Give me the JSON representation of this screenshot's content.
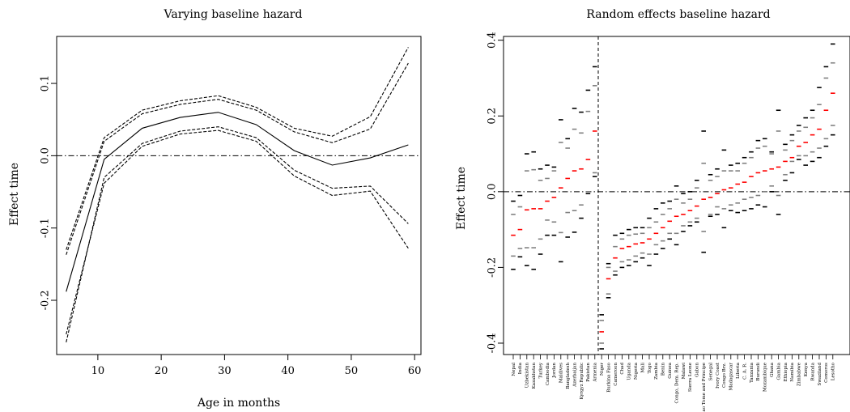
{
  "chart_data": [
    {
      "type": "line",
      "title": "Varying baseline hazard",
      "xlabel": "Age in months",
      "ylabel": "Effect time",
      "xlim": [
        3.5,
        61
      ],
      "ylim": [
        -0.275,
        0.165
      ],
      "xticks": [
        10,
        20,
        30,
        40,
        50,
        60
      ],
      "yticks": [
        -0.2,
        -0.1,
        0.0,
        0.1
      ],
      "reference_line_y": 0.0,
      "x": [
        5,
        11,
        17,
        23,
        29,
        35,
        41,
        47,
        53,
        59
      ],
      "series": [
        {
          "style": "solid",
          "values": [
            -0.188,
            -0.005,
            0.038,
            0.053,
            0.06,
            0.043,
            0.007,
            -0.013,
            -0.003,
            0.015
          ]
        },
        {
          "style": "dashed",
          "values": [
            -0.13,
            0.025,
            0.063,
            0.076,
            0.083,
            0.067,
            0.038,
            0.027,
            0.054,
            0.15
          ]
        },
        {
          "style": "dashed",
          "values": [
            -0.137,
            0.02,
            0.058,
            0.071,
            0.078,
            0.063,
            0.033,
            0.018,
            0.037,
            0.128
          ]
        },
        {
          "style": "dashed",
          "values": [
            -0.247,
            -0.038,
            0.013,
            0.03,
            0.035,
            0.02,
            -0.028,
            -0.055,
            -0.049,
            -0.128
          ]
        },
        {
          "style": "dashed",
          "values": [
            -0.258,
            -0.03,
            0.017,
            0.034,
            0.04,
            0.025,
            -0.02,
            -0.045,
            -0.042,
            -0.094
          ]
        }
      ]
    },
    {
      "type": "scatter",
      "title": "Random effects baseline hazard",
      "xlabel": "",
      "ylabel": "Effect time",
      "ylim": [
        -0.43,
        0.41
      ],
      "yticks": [
        -0.4,
        -0.2,
        0.0,
        0.2,
        0.4
      ],
      "reference_line_y": 0.0,
      "vertical_dashed_after_category": "Niger",
      "colors": {
        "outer": "#000000",
        "inner": "#808080",
        "median": "#ff0000"
      },
      "categories": [
        "Nepal",
        "India",
        "Uzbekistan",
        "Kazakhstan",
        "Turkey",
        "Cambodia",
        "Jordan",
        "Maldives",
        "Bangladesh",
        "Azerbaijan",
        "Kyrgyz Republic",
        "Pakistan",
        "Armenia",
        "Niger",
        "Burkina Faso",
        "Cameroon",
        "Chad",
        "Uganda",
        "Nigeria",
        "Mali",
        "Togo",
        "Zambia",
        "Benin",
        "Guinea",
        "Congo, Dem. Rep.",
        "Malawi",
        "Sierra Leone",
        "Gabon",
        "Sao Tome and Principe",
        "Senegal",
        "Ivory Coast",
        "Congo Brz.",
        "Madagascar",
        "Liberia",
        "C. A. R.",
        "Tanzania",
        "Burundi",
        "Mozambique",
        "Ghana",
        "Gambia",
        "Ethiopia",
        "Namibia",
        "Zimbabwe",
        "Kenya",
        "Rwanda",
        "Swaziland",
        "Comoros",
        "Lesotho"
      ],
      "values": [
        [
          -0.205,
          -0.17,
          -0.115,
          -0.06,
          -0.025
        ],
        [
          -0.172,
          -0.15,
          -0.1,
          -0.04,
          -0.01
        ],
        [
          -0.195,
          -0.148,
          -0.048,
          0.055,
          0.1
        ],
        [
          -0.205,
          -0.148,
          -0.045,
          0.058,
          0.105
        ],
        [
          -0.165,
          -0.125,
          -0.045,
          0.03,
          0.06
        ],
        [
          -0.115,
          -0.075,
          -0.025,
          0.035,
          0.07
        ],
        [
          -0.115,
          -0.08,
          -0.015,
          0.055,
          0.065
        ],
        [
          -0.185,
          -0.108,
          0.01,
          0.13,
          0.19
        ],
        [
          -0.12,
          -0.055,
          0.035,
          0.115,
          0.14
        ],
        [
          -0.107,
          -0.05,
          0.055,
          0.165,
          0.22
        ],
        [
          -0.07,
          -0.035,
          0.06,
          0.155,
          0.21
        ],
        [
          -0.005,
          0.0,
          0.085,
          0.212,
          0.268
        ],
        [
          0.04,
          0.05,
          0.16,
          0.28,
          0.33
        ],
        [
          -0.415,
          -0.4,
          -0.37,
          -0.34,
          -0.325
        ],
        [
          -0.28,
          -0.27,
          -0.23,
          -0.2,
          -0.19
        ],
        [
          -0.22,
          -0.21,
          -0.175,
          -0.145,
          -0.115
        ],
        [
          -0.2,
          -0.185,
          -0.15,
          -0.125,
          -0.11
        ],
        [
          -0.195,
          -0.18,
          -0.145,
          -0.115,
          -0.1
        ],
        [
          -0.185,
          -0.17,
          -0.138,
          -0.112,
          -0.095
        ],
        [
          -0.175,
          -0.162,
          -0.135,
          -0.11,
          -0.095
        ],
        [
          -0.195,
          -0.165,
          -0.125,
          -0.095,
          -0.07
        ],
        [
          -0.165,
          -0.14,
          -0.11,
          -0.08,
          -0.045
        ],
        [
          -0.15,
          -0.13,
          -0.095,
          -0.06,
          -0.03
        ],
        [
          -0.125,
          -0.11,
          -0.078,
          -0.045,
          -0.025
        ],
        [
          -0.14,
          -0.11,
          -0.065,
          -0.02,
          0.015
        ],
        [
          -0.105,
          -0.09,
          -0.06,
          -0.03,
          -0.005
        ],
        [
          -0.09,
          -0.08,
          -0.05,
          -0.02,
          0.0
        ],
        [
          -0.08,
          -0.07,
          -0.038,
          0.01,
          0.03
        ],
        [
          -0.16,
          -0.105,
          -0.02,
          0.075,
          0.16
        ],
        [
          -0.065,
          -0.06,
          -0.015,
          0.03,
          0.045
        ],
        [
          -0.06,
          -0.04,
          -0.005,
          0.04,
          0.06
        ],
        [
          -0.095,
          -0.045,
          0.005,
          0.055,
          0.11
        ],
        [
          -0.05,
          -0.035,
          0.01,
          0.055,
          0.07
        ],
        [
          -0.055,
          -0.03,
          0.02,
          0.055,
          0.075
        ],
        [
          -0.05,
          -0.02,
          0.025,
          0.075,
          0.09
        ],
        [
          -0.045,
          -0.015,
          0.04,
          0.09,
          0.105
        ],
        [
          -0.035,
          -0.01,
          0.05,
          0.115,
          0.135
        ],
        [
          -0.04,
          0.0,
          0.055,
          0.12,
          0.14
        ],
        [
          0.0,
          0.015,
          0.06,
          0.1,
          0.105
        ],
        [
          -0.06,
          -0.01,
          0.065,
          0.16,
          0.215
        ],
        [
          0.03,
          0.045,
          0.08,
          0.11,
          0.125
        ],
        [
          0.05,
          0.08,
          0.09,
          0.135,
          0.15
        ],
        [
          0.085,
          0.095,
          0.12,
          0.16,
          0.175
        ],
        [
          0.07,
          0.095,
          0.13,
          0.17,
          0.195
        ],
        [
          0.08,
          0.105,
          0.15,
          0.195,
          0.215
        ],
        [
          0.09,
          0.115,
          0.165,
          0.23,
          0.275
        ],
        [
          0.12,
          0.14,
          0.215,
          0.3,
          0.33
        ],
        [
          0.15,
          0.175,
          0.26,
          0.34,
          0.39
        ]
      ]
    }
  ]
}
